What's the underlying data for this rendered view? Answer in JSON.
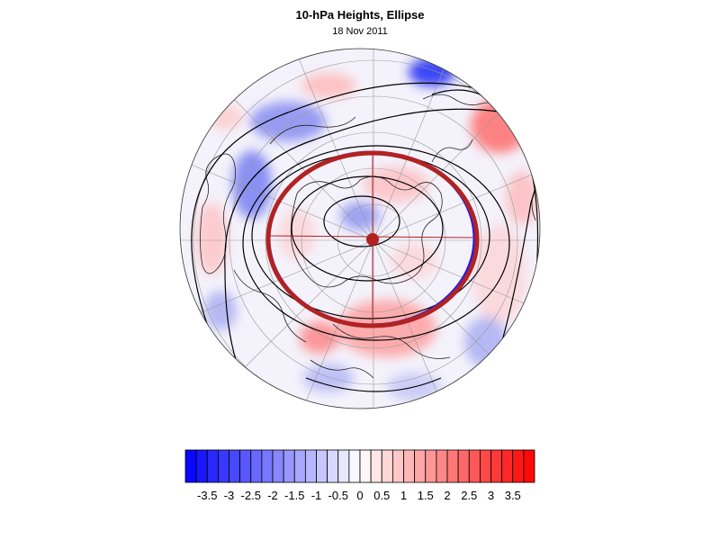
{
  "title": "10-hPa Heights, Ellipse",
  "subtitle": "18 Nov 2011",
  "colorbar": {
    "labels": [
      "-3.5",
      "-3",
      "-2.5",
      "-2",
      "-1.5",
      "-1",
      "-0.5",
      "0",
      "0.5",
      "1",
      "1.5",
      "2",
      "2.5",
      "3",
      "3.5"
    ],
    "levels": [
      -4,
      -3.75,
      -3.5,
      -3.25,
      -3,
      -2.75,
      -2.5,
      -2.25,
      -2,
      -1.75,
      -1.5,
      -1.25,
      -1,
      -0.75,
      -0.5,
      -0.25,
      0,
      0.25,
      0.5,
      0.75,
      1,
      1.25,
      1.5,
      1.75,
      2,
      2.25,
      2.5,
      2.75,
      3,
      3.25,
      3.5,
      3.75,
      4
    ],
    "low_color": "#0000ff",
    "mid_color": "#ffffff",
    "high_color": "#ff0000"
  },
  "map": {
    "projection": "north-polar-stereographic",
    "ellipse_color": "#b22222",
    "ellipse_blue_edge_color": "#1a1aff",
    "contour_color": "#000000"
  }
}
